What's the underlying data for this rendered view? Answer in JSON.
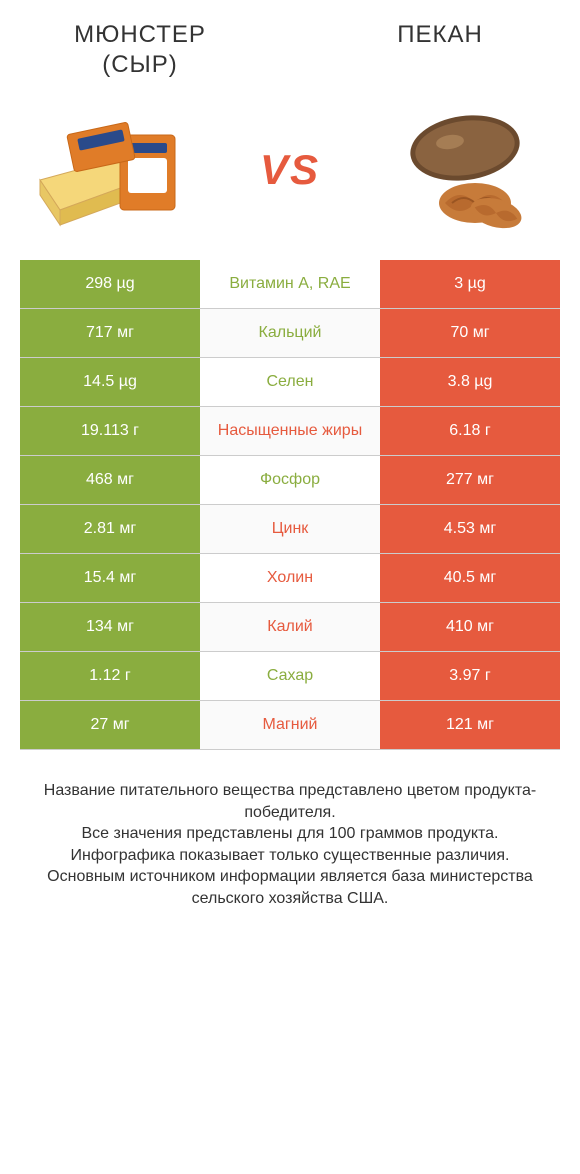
{
  "colors": {
    "left": "#8aad3f",
    "right": "#e65a3e",
    "left_label": "#8aad3f",
    "right_label": "#e65a3e",
    "bg": "#ffffff",
    "row_alt": "#fafafa",
    "border": "#cccccc",
    "title_text": "#333333",
    "footer_text": "#333333"
  },
  "typography": {
    "title_fontsize": 24,
    "vs_fontsize": 42,
    "cell_fontsize": 16,
    "footer_fontsize": 16
  },
  "header": {
    "left_title_line1": "МЮНСТЕР",
    "left_title_line2": "(СЫР)",
    "right_title": "ПЕКАН",
    "vs": "VS"
  },
  "comparison": {
    "type": "table",
    "columns": [
      "left_value",
      "nutrient",
      "right_value",
      "label_color_side"
    ],
    "rows": [
      {
        "left": "298 µg",
        "nutrient": "Витамин A, RAE",
        "right": "3 µg",
        "winner": "left"
      },
      {
        "left": "717 мг",
        "nutrient": "Кальций",
        "right": "70 мг",
        "winner": "left"
      },
      {
        "left": "14.5 µg",
        "nutrient": "Селен",
        "right": "3.8 µg",
        "winner": "left"
      },
      {
        "left": "19.113 г",
        "nutrient": "Насыщенные жиры",
        "right": "6.18 г",
        "winner": "right"
      },
      {
        "left": "468 мг",
        "nutrient": "Фосфор",
        "right": "277 мг",
        "winner": "left"
      },
      {
        "left": "2.81 мг",
        "nutrient": "Цинк",
        "right": "4.53 мг",
        "winner": "right"
      },
      {
        "left": "15.4 мг",
        "nutrient": "Холин",
        "right": "40.5 мг",
        "winner": "right"
      },
      {
        "left": "134 мг",
        "nutrient": "Калий",
        "right": "410 мг",
        "winner": "right"
      },
      {
        "left": "1.12 г",
        "nutrient": "Сахар",
        "right": "3.97 г",
        "winner": "left"
      },
      {
        "left": "27 мг",
        "nutrient": "Магний",
        "right": "121 мг",
        "winner": "right"
      }
    ]
  },
  "footer": {
    "line1": "Название питательного вещества представлено цветом продукта-победителя.",
    "line2": "Все значения представлены для 100 граммов продукта.",
    "line3": "Инфографика показывает только существенные различия.",
    "line4": "Основным источником информации является база министерства сельского хозяйства США."
  }
}
